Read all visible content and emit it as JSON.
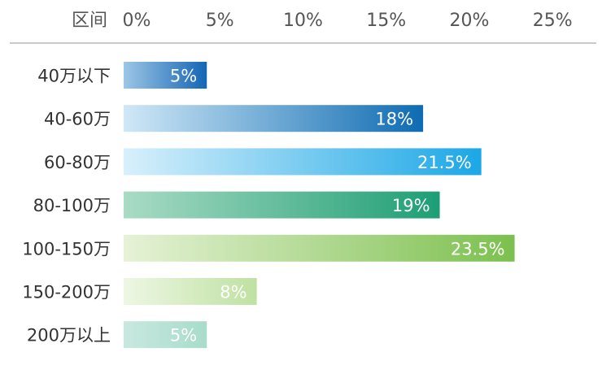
{
  "chart_data": {
    "type": "bar",
    "orientation": "horizontal",
    "header_label": "区间",
    "x_ticks": [
      "0%",
      "5%",
      "10%",
      "15%",
      "20%",
      "25%"
    ],
    "xlim": [
      0,
      25
    ],
    "x_axis_position": "top",
    "grid": false,
    "categories": [
      "40万以下",
      "40-60万",
      "60-80万",
      "80-100万",
      "100-150万",
      "150-200万",
      "200万以上"
    ],
    "values": [
      5,
      18,
      21.5,
      19,
      23.5,
      8,
      5
    ],
    "value_labels": [
      "5%",
      "18%",
      "21.5%",
      "19%",
      "23.5%",
      "8%",
      "5%"
    ],
    "bar_gradients": [
      [
        "#9cc6e6",
        "#1565b5"
      ],
      [
        "#cfe8f7",
        "#0f6bb2"
      ],
      [
        "#d8f0fb",
        "#1ba7e6"
      ],
      [
        "#a9dbc5",
        "#1e9e74"
      ],
      [
        "#e6f2d6",
        "#7cc04e"
      ],
      [
        "#edf7e3",
        "#bfe1a2"
      ],
      [
        "#c8e8df",
        "#a8dccb"
      ]
    ],
    "colors": {
      "axis_text": "#555555",
      "category_text": "#333333",
      "value_text": "#ffffff",
      "rule": "#aaaaaa"
    }
  }
}
